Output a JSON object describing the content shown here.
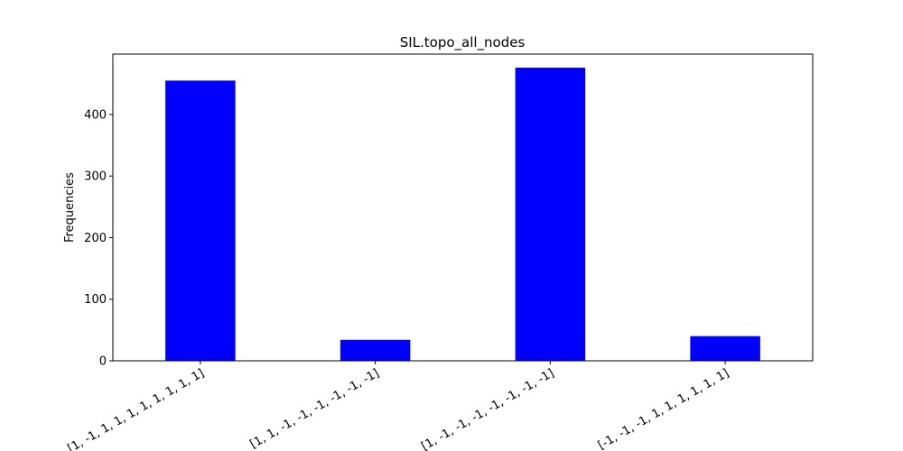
{
  "chart_data": {
    "type": "bar",
    "title": "SIL.topo_all_nodes",
    "xlabel": "",
    "ylabel": "Frequencies",
    "categories": [
      "[1, -1, 1, 1, 1, 1, 1, 1, 1, 1]",
      "[1, 1, -1, -1, -1, -1, -1, -1]",
      "[1, -1, -1, -1, -1, -1, -1, -1]",
      "[-1, -1, -1, 1, 1, 1, 1, 1, 1]"
    ],
    "values": [
      455,
      34,
      476,
      40
    ],
    "ylim": [
      0,
      498
    ],
    "yticks": [
      0,
      100,
      200,
      300,
      400
    ],
    "bar_color": "#0000ff",
    "grid": false,
    "legend": "none"
  }
}
